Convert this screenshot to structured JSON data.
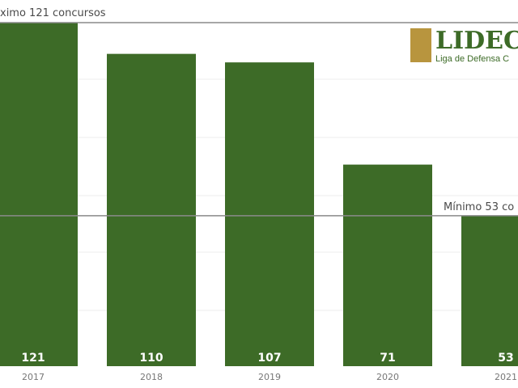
{
  "chart_data": {
    "type": "bar",
    "categories": [
      "2017",
      "2018",
      "2019",
      "2020",
      "2021"
    ],
    "values": [
      121,
      110,
      107,
      71,
      53
    ],
    "data_labels": [
      "121",
      "110",
      "107",
      "71",
      "53"
    ],
    "ylim": [
      0,
      121
    ],
    "grid": true,
    "annotations": [
      {
        "text": "ximo 121 concursos",
        "value": 121
      },
      {
        "text": "Mínimo 53 co",
        "value": 53
      }
    ]
  },
  "logo": {
    "name": "LIDEC",
    "subtitle": "Liga de Defensa C"
  },
  "colors": {
    "bar": "#3d6b27",
    "logo_accent": "#b8953e",
    "reference_line": "#8a8a8a"
  }
}
